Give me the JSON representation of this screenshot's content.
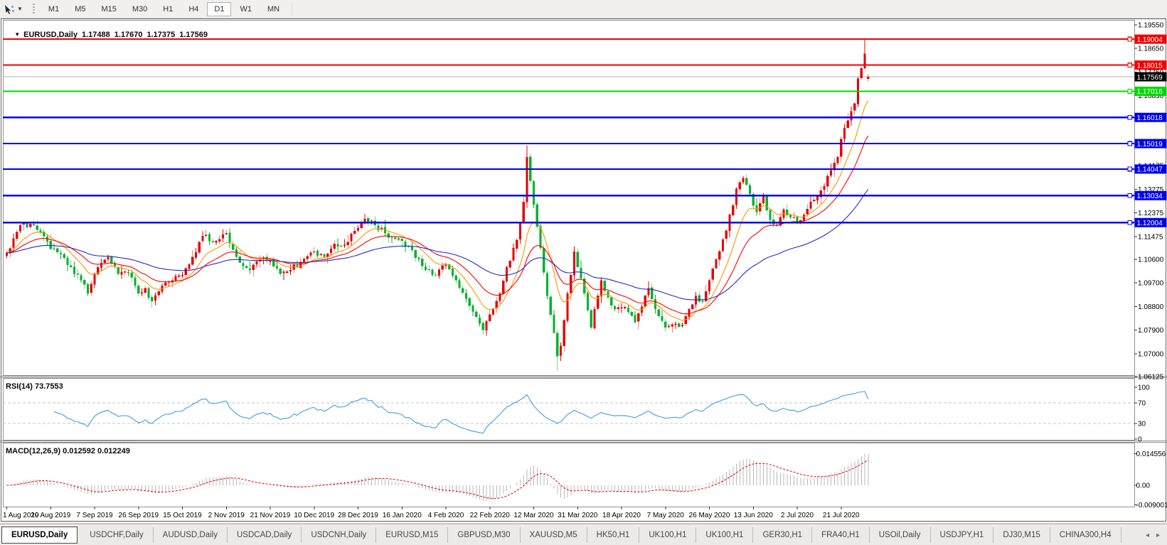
{
  "toolbar": {
    "tool_icon": "chart-cursor",
    "timeframes": [
      "M1",
      "M5",
      "M15",
      "M30",
      "H1",
      "H4",
      "D1",
      "W1",
      "MN"
    ],
    "active_timeframe": "D1"
  },
  "chart_title": {
    "collapse_icon": "▼",
    "symbol": "EURUSD,Daily",
    "open": "1.17488",
    "high": "1.17670",
    "low": "1.17375",
    "close": "1.17569"
  },
  "chart_data": {
    "type": "candlestick",
    "symbol": "EURUSD",
    "timeframe": "Daily",
    "bars": 256,
    "colors": {
      "up": "#e60000",
      "down": "#00b22d",
      "ma_fast": "#ff9500",
      "ma_mid": "#ff0000",
      "ma_slow": "#2929c8",
      "rsi": "#3f9fe0",
      "macd_hist": "#b8b8b8",
      "macd_signal": "#e00000",
      "level_dash": "#c4c4c4",
      "current_line": "#b0b0b0",
      "current_label_bg": "#000000",
      "axis_text": "#000000",
      "panel_border": "#909090"
    },
    "price_axis": {
      "max": 1.1974,
      "min": 1.0618,
      "ticks": [
        "1.19550",
        "1.18650",
        "1.17750",
        "1.16850",
        "1.15950",
        "1.15075",
        "1.14175",
        "1.13275",
        "1.12375",
        "1.11475",
        "1.10600",
        "1.09700",
        "1.08800",
        "1.07900",
        "1.07000",
        "1.06125"
      ]
    },
    "horizontal_lines": [
      {
        "price": 1.19004,
        "label": "1.19004",
        "color": "#f20000"
      },
      {
        "price": 1.18015,
        "label": "1.18015",
        "color": "#f20000"
      },
      {
        "price": 1.17016,
        "label": "1.17016",
        "color": "#00d900"
      },
      {
        "price": 1.16018,
        "label": "1.16018",
        "color": "#0000f0"
      },
      {
        "price": 1.15019,
        "label": "1.15019",
        "color": "#0000f0"
      },
      {
        "price": 1.14047,
        "label": "1.14047",
        "color": "#0000f0"
      },
      {
        "price": 1.13034,
        "label": "1.13034",
        "color": "#0000f0"
      },
      {
        "price": 1.12004,
        "label": "1.12004",
        "color": "#0000f0"
      }
    ],
    "current_price": {
      "value": 1.17569,
      "label": "1.17569"
    },
    "last_bar": {
      "open": 1.17488,
      "high": 1.1767,
      "low": 1.17375,
      "close": 1.17569
    },
    "price_anchors": [
      [
        0,
        1.1085
      ],
      [
        2,
        1.114
      ],
      [
        4,
        1.119
      ],
      [
        7,
        1.1195
      ],
      [
        10,
        1.1165
      ],
      [
        13,
        1.11
      ],
      [
        16,
        1.108
      ],
      [
        19,
        1.103
      ],
      [
        22,
        1.098
      ],
      [
        24,
        1.093
      ],
      [
        27,
        1.103
      ],
      [
        30,
        1.107
      ],
      [
        33,
        1.1005
      ],
      [
        36,
        1.101
      ],
      [
        39,
        1.093
      ],
      [
        41,
        1.095
      ],
      [
        43,
        1.09
      ],
      [
        46,
        1.096
      ],
      [
        49,
        1.098
      ],
      [
        52,
        1.1
      ],
      [
        55,
        1.107
      ],
      [
        58,
        1.115
      ],
      [
        62,
        1.113
      ],
      [
        65,
        1.116
      ],
      [
        68,
        1.107
      ],
      [
        72,
        1.102
      ],
      [
        75,
        1.106
      ],
      [
        78,
        1.106
      ],
      [
        81,
        1.1005
      ],
      [
        84,
        1.102
      ],
      [
        87,
        1.105
      ],
      [
        91,
        1.109
      ],
      [
        94,
        1.107
      ],
      [
        97,
        1.112
      ],
      [
        100,
        1.1115
      ],
      [
        104,
        1.118
      ],
      [
        106,
        1.1215
      ],
      [
        109,
        1.119
      ],
      [
        112,
        1.116
      ],
      [
        115,
        1.114
      ],
      [
        117,
        1.113
      ],
      [
        120,
        1.1095
      ],
      [
        124,
        1.102
      ],
      [
        127,
        1.1
      ],
      [
        130,
        1.104
      ],
      [
        133,
        1.098
      ],
      [
        136,
        1.091
      ],
      [
        139,
        1.084
      ],
      [
        141,
        1.079
      ],
      [
        143,
        1.085
      ],
      [
        146,
        1.093
      ],
      [
        148,
        1.103
      ],
      [
        151,
        1.1135
      ],
      [
        153,
        1.128
      ],
      [
        154,
        1.145
      ],
      [
        155,
        1.136
      ],
      [
        157,
        1.1185
      ],
      [
        159,
        1.101
      ],
      [
        160,
        1.092
      ],
      [
        162,
        1.078
      ],
      [
        163,
        1.069
      ],
      [
        164,
        1.073
      ],
      [
        166,
        1.093
      ],
      [
        168,
        1.109
      ],
      [
        169,
        1.103
      ],
      [
        171,
        1.093
      ],
      [
        173,
        1.08
      ],
      [
        176,
        1.098
      ],
      [
        178,
        1.0915
      ],
      [
        180,
        1.087
      ],
      [
        182,
        1.0875
      ],
      [
        184,
        1.086
      ],
      [
        186,
        1.082
      ],
      [
        188,
        1.088
      ],
      [
        190,
        1.095
      ],
      [
        192,
        1.087
      ],
      [
        195,
        1.08
      ],
      [
        198,
        1.0815
      ],
      [
        200,
        1.081
      ],
      [
        202,
        1.087
      ],
      [
        204,
        1.092
      ],
      [
        206,
        1.09
      ],
      [
        208,
        1.098
      ],
      [
        210,
        1.106
      ],
      [
        213,
        1.117
      ],
      [
        216,
        1.133
      ],
      [
        218,
        1.137
      ],
      [
        220,
        1.131
      ],
      [
        222,
        1.124
      ],
      [
        224,
        1.13
      ],
      [
        226,
        1.121
      ],
      [
        228,
        1.119
      ],
      [
        230,
        1.125
      ],
      [
        232,
        1.122
      ],
      [
        234,
        1.12
      ],
      [
        236,
        1.123
      ],
      [
        238,
        1.128
      ],
      [
        240,
        1.13
      ],
      [
        242,
        1.134
      ],
      [
        244,
        1.14
      ],
      [
        246,
        1.145
      ],
      [
        247,
        1.152
      ],
      [
        249,
        1.159
      ],
      [
        251,
        1.1655
      ],
      [
        252,
        1.175
      ],
      [
        253,
        1.179
      ],
      [
        254,
        1.1845
      ],
      [
        255,
        1.17569
      ]
    ],
    "wick_overrides": {
      "154": {
        "high": 1.1495
      },
      "163": {
        "low": 1.0636
      },
      "254": {
        "high": 1.19
      }
    },
    "moving_averages": [
      {
        "type": "EMA",
        "period": 10,
        "color_key": "ma_fast"
      },
      {
        "type": "EMA",
        "period": 21,
        "color_key": "ma_mid"
      },
      {
        "type": "EMA",
        "period": 55,
        "color_key": "ma_slow"
      }
    ],
    "x_ticks": [
      {
        "i": 0,
        "label": "1 Aug 2019"
      },
      {
        "i": 13,
        "label": "20 Aug 2019"
      },
      {
        "i": 26,
        "label": "7 Sep 2019"
      },
      {
        "i": 39,
        "label": "26 Sep 2019"
      },
      {
        "i": 52,
        "label": "15 Oct 2019"
      },
      {
        "i": 65,
        "label": "2 Nov 2019"
      },
      {
        "i": 78,
        "label": "21 Nov 2019"
      },
      {
        "i": 91,
        "label": "10 Dec 2019"
      },
      {
        "i": 104,
        "label": "28 Dec 2019"
      },
      {
        "i": 117,
        "label": "16 Jan 2020"
      },
      {
        "i": 130,
        "label": "4 Feb 2020"
      },
      {
        "i": 143,
        "label": "22 Feb 2020"
      },
      {
        "i": 156,
        "label": "12 Mar 2020"
      },
      {
        "i": 169,
        "label": "31 Mar 2020"
      },
      {
        "i": 182,
        "label": "18 Apr 2020"
      },
      {
        "i": 195,
        "label": "7 May 2020"
      },
      {
        "i": 208,
        "label": "26 May 2020"
      },
      {
        "i": 221,
        "label": "13 Jun 2020"
      },
      {
        "i": 234,
        "label": "2 Jul 2020"
      },
      {
        "i": 247,
        "label": "21 Jul 2020"
      }
    ],
    "rsi": {
      "label": "RSI(14) 73.7553",
      "period": 14,
      "value": 73.7553,
      "levels": [
        70,
        30
      ],
      "axis": [
        {
          "v": 100,
          "label": "100"
        },
        {
          "v": 70,
          "label": "70"
        },
        {
          "v": 30,
          "label": "30"
        },
        {
          "v": 0,
          "label": "0"
        }
      ]
    },
    "macd": {
      "label": "MACD(12,26,9) 0.012592 0.012249",
      "fast": 12,
      "slow": 26,
      "signal_period": 9,
      "value": 0.012592,
      "signal_value": 0.012249,
      "max": 0.014556,
      "min": -0.009001,
      "axis": [
        {
          "v": 0.014556,
          "label": "0.014556"
        },
        {
          "v": 0,
          "label": "0.00"
        },
        {
          "v": -0.009001,
          "label": "-0.009001"
        }
      ]
    }
  },
  "tabbar": {
    "tabs": [
      "EURUSD,Daily",
      "USDCHF,Daily",
      "AUDUSD,Daily",
      "USDCAD,Daily",
      "USDCNH,Daily",
      "EURUSD,M15",
      "GBPUSD,M30",
      "XAUUSD,M5",
      "HK50,H1",
      "UK100,H1",
      "UK100,H1",
      "GER30,H1",
      "FRA40,H1",
      "USOil,Daily",
      "USDJPY,H1",
      "DJ30,M15",
      "CHINA300,H4"
    ],
    "active_index": 0,
    "scroll_left": "◂",
    "scroll_right": "▸"
  }
}
